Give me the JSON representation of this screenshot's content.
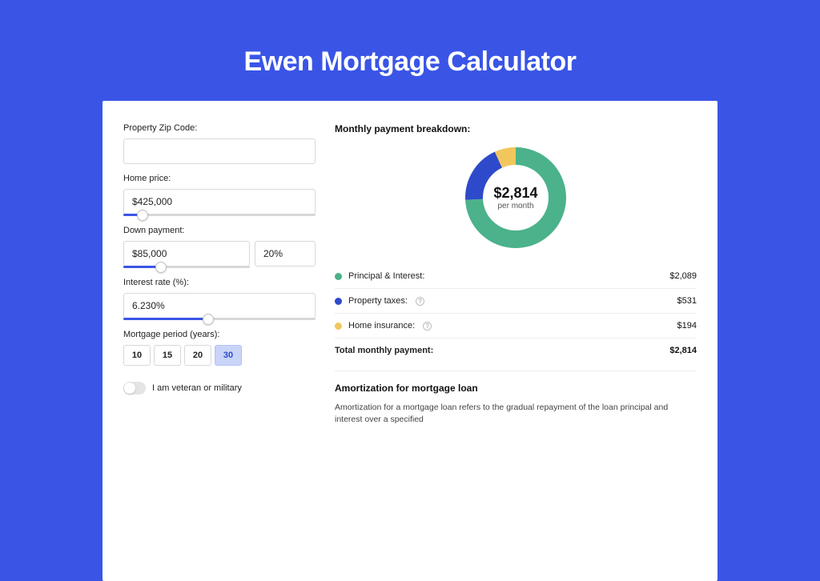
{
  "page": {
    "title": "Ewen Mortgage Calculator",
    "background_color": "#3a55e6"
  },
  "form": {
    "zip": {
      "label": "Property Zip Code:",
      "value": ""
    },
    "price": {
      "label": "Home price:",
      "value": "$425,000",
      "slider_pct": 10
    },
    "down": {
      "label": "Down payment:",
      "value": "$85,000",
      "pct_value": "20%",
      "slider_pct": 30
    },
    "rate": {
      "label": "Interest rate (%):",
      "value": "6.230%",
      "slider_pct": 44
    },
    "period": {
      "label": "Mortgage period (years):",
      "options": [
        "10",
        "15",
        "20",
        "30"
      ],
      "selected": "30"
    },
    "veteran": {
      "label": "I am veteran or military",
      "on": false
    }
  },
  "breakdown": {
    "title": "Monthly payment breakdown:",
    "center_amount": "$2,814",
    "center_sub": "per month",
    "donut": {
      "size": 130,
      "thickness": 22,
      "slices": [
        {
          "key": "pi",
          "pct": 74.3,
          "color": "#4bb28b"
        },
        {
          "key": "tax",
          "pct": 18.9,
          "color": "#2e4acb"
        },
        {
          "key": "ins",
          "pct": 6.8,
          "color": "#f1c75d"
        }
      ]
    },
    "rows": [
      {
        "key": "pi",
        "label": "Principal & Interest:",
        "value": "$2,089",
        "color": "#4bb28b",
        "info": false
      },
      {
        "key": "tax",
        "label": "Property taxes:",
        "value": "$531",
        "color": "#2e4acb",
        "info": true
      },
      {
        "key": "ins",
        "label": "Home insurance:",
        "value": "$194",
        "color": "#f1c75d",
        "info": true
      }
    ],
    "total": {
      "label": "Total monthly payment:",
      "value": "$2,814"
    }
  },
  "amortization": {
    "title": "Amortization for mortgage loan",
    "text": "Amortization for a mortgage loan refers to the gradual repayment of the loan principal and interest over a specified"
  }
}
